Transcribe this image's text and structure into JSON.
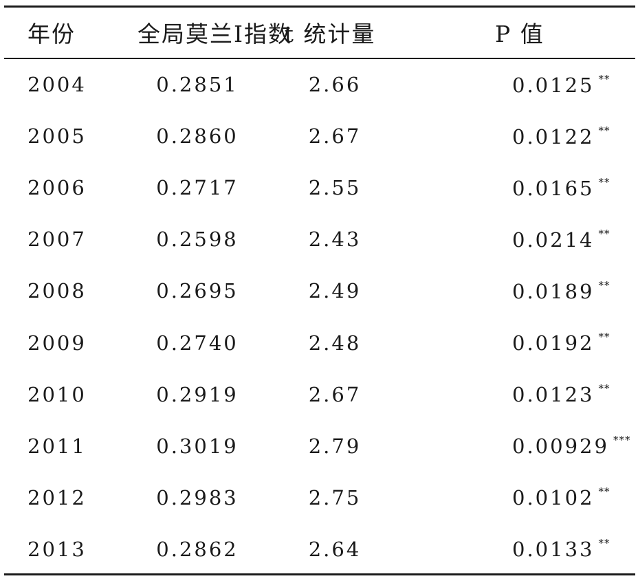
{
  "headers": {
    "year": "年份",
    "moran": "全局莫兰Ⅰ指数",
    "t": "t 统计量",
    "p": "P 值"
  },
  "rows": [
    {
      "year": "2004",
      "moran": "0.2851",
      "t": "2.66",
      "p": "0.0125",
      "sig": "**"
    },
    {
      "year": "2005",
      "moran": "0.2860",
      "t": "2.67",
      "p": "0.0122",
      "sig": "**"
    },
    {
      "year": "2006",
      "moran": "0.2717",
      "t": "2.55",
      "p": "0.0165",
      "sig": "**"
    },
    {
      "year": "2007",
      "moran": "0.2598",
      "t": "2.43",
      "p": "0.0214",
      "sig": "**"
    },
    {
      "year": "2008",
      "moran": "0.2695",
      "t": "2.49",
      "p": "0.0189",
      "sig": "**"
    },
    {
      "year": "2009",
      "moran": "0.2740",
      "t": "2.48",
      "p": "0.0192",
      "sig": "**"
    },
    {
      "year": "2010",
      "moran": "0.2919",
      "t": "2.67",
      "p": "0.0123",
      "sig": "**"
    },
    {
      "year": "2011",
      "moran": "0.3019",
      "t": "2.79",
      "p": "0.00929",
      "sig": "***"
    },
    {
      "year": "2012",
      "moran": "0.2983",
      "t": "2.75",
      "p": "0.0102",
      "sig": "**"
    },
    {
      "year": "2013",
      "moran": "0.2862",
      "t": "2.64",
      "p": "0.0133",
      "sig": "**"
    }
  ]
}
